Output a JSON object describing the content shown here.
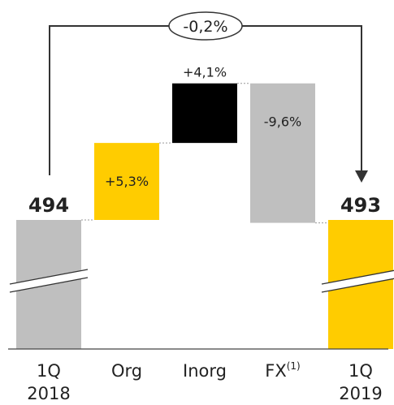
{
  "chart_data": {
    "type": "bar",
    "subtype": "waterfall",
    "categories": [
      "1Q\n2018",
      "Org",
      "Inorg",
      "FX(1)",
      "1Q\n2019"
    ],
    "category_lines": [
      [
        "1Q",
        "2018"
      ],
      [
        "Org"
      ],
      [
        "Inorg"
      ],
      [
        "FX",
        "(1)"
      ],
      [
        "1Q",
        "2019"
      ]
    ],
    "bars": [
      {
        "kind": "total",
        "value": 494,
        "label": "494",
        "color": "#bfbfbf",
        "broken_axis": true
      },
      {
        "kind": "delta",
        "value": 5.3,
        "label": "+5,3%",
        "color": "#ffcc00"
      },
      {
        "kind": "delta",
        "value": 4.1,
        "label": "+4,1%",
        "color": "#000000"
      },
      {
        "kind": "delta",
        "value": -9.6,
        "label": "-9,6%",
        "color": "#bfbfbf"
      },
      {
        "kind": "total",
        "value": 493,
        "label": "493",
        "color": "#ffcc00",
        "broken_axis": true
      }
    ],
    "overall_change": {
      "label": "-0,2%",
      "from": "1Q 2018",
      "to": "1Q 2019"
    },
    "y_unit": "%",
    "grid": false,
    "legend": "none"
  }
}
